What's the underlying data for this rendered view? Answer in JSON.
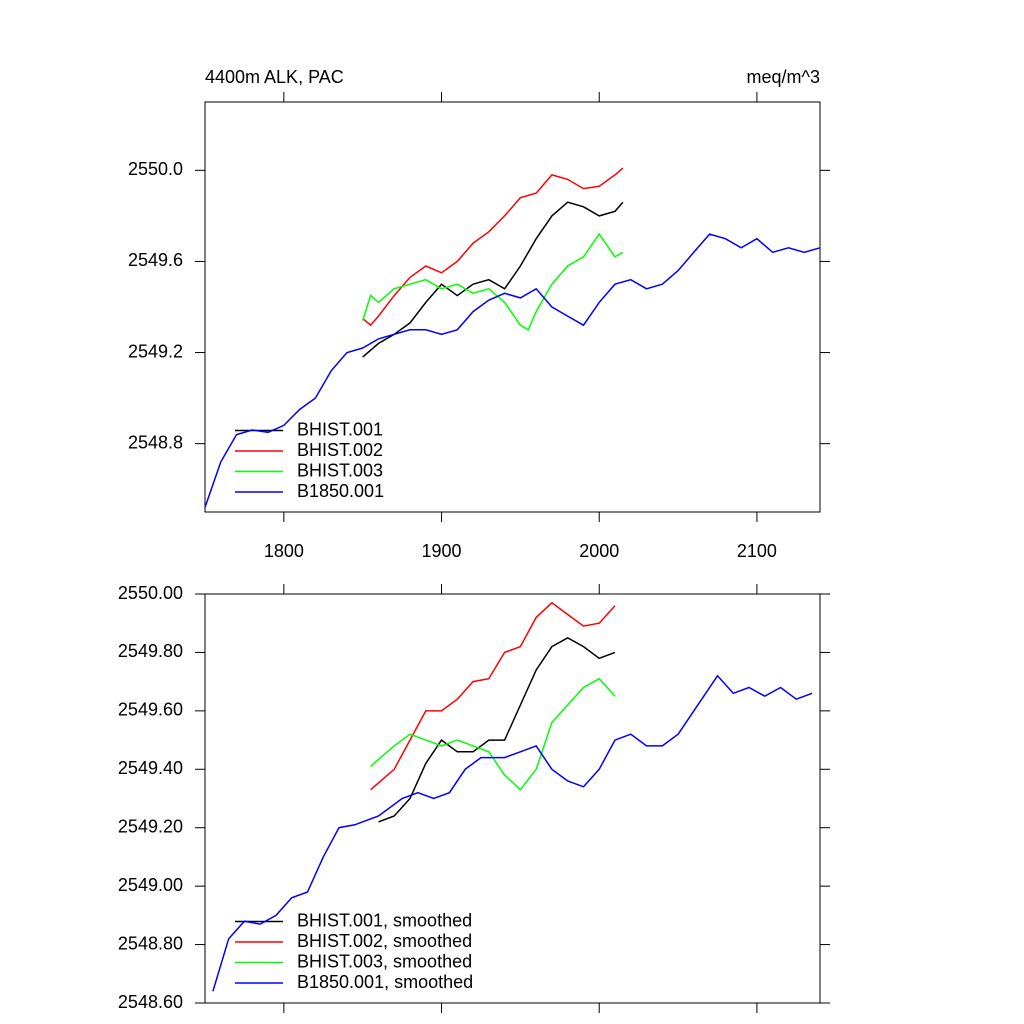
{
  "chart_data": [
    {
      "type": "line",
      "title": "4400m ALK, PAC",
      "units": "meq/m^3",
      "xlim": [
        1750,
        2140
      ],
      "xticks": [
        1800,
        1900,
        2000,
        2100
      ],
      "ylim": [
        2548.5,
        2550.3
      ],
      "yticks": [
        2548.8,
        2549.2,
        2549.6,
        {
          "value": 2550.0,
          "label": "2550.0"
        }
      ],
      "legend": "lower left",
      "series": [
        {
          "name": "BHIST.001",
          "color": "#000000",
          "x": [
            1850,
            1860,
            1870,
            1880,
            1890,
            1900,
            1910,
            1920,
            1930,
            1940,
            1950,
            1960,
            1970,
            1980,
            1990,
            2000,
            2010,
            2015
          ],
          "values": [
            2549.18,
            2549.24,
            2549.28,
            2549.33,
            2549.42,
            2549.5,
            2549.45,
            2549.5,
            2549.52,
            2549.48,
            2549.58,
            2549.7,
            2549.8,
            2549.86,
            2549.84,
            2549.8,
            2549.82,
            2549.86
          ]
        },
        {
          "name": "BHIST.002",
          "color": "#ff0000",
          "x": [
            1850,
            1855,
            1860,
            1870,
            1880,
            1890,
            1900,
            1910,
            1920,
            1930,
            1940,
            1950,
            1960,
            1970,
            1980,
            1990,
            2000,
            2010,
            2015
          ],
          "values": [
            2549.35,
            2549.32,
            2549.36,
            2549.45,
            2549.53,
            2549.58,
            2549.55,
            2549.6,
            2549.68,
            2549.73,
            2549.8,
            2549.88,
            2549.9,
            2549.98,
            2549.96,
            2549.92,
            2549.93,
            2549.98,
            2550.01
          ]
        },
        {
          "name": "BHIST.003",
          "color": "#00ff00",
          "x": [
            1850,
            1855,
            1860,
            1870,
            1880,
            1890,
            1900,
            1910,
            1920,
            1930,
            1940,
            1950,
            1955,
            1960,
            1970,
            1980,
            1990,
            2000,
            2010,
            2015
          ],
          "values": [
            2549.34,
            2549.45,
            2549.42,
            2549.48,
            2549.5,
            2549.52,
            2549.48,
            2549.5,
            2549.46,
            2549.48,
            2549.42,
            2549.32,
            2549.3,
            2549.38,
            2549.5,
            2549.58,
            2549.62,
            2549.72,
            2549.62,
            2549.64
          ]
        },
        {
          "name": "B1850.001",
          "color": "#0000ff",
          "x": [
            1750,
            1760,
            1770,
            1780,
            1790,
            1800,
            1810,
            1820,
            1830,
            1840,
            1850,
            1860,
            1870,
            1880,
            1890,
            1900,
            1910,
            1920,
            1930,
            1940,
            1950,
            1960,
            1970,
            1980,
            1990,
            2000,
            2010,
            2020,
            2030,
            2040,
            2050,
            2060,
            2070,
            2080,
            2090,
            2100,
            2110,
            2120,
            2130,
            2140
          ],
          "values": [
            2548.52,
            2548.72,
            2548.84,
            2548.86,
            2548.85,
            2548.88,
            2548.95,
            2549.0,
            2549.12,
            2549.2,
            2549.22,
            2549.26,
            2549.28,
            2549.3,
            2549.3,
            2549.28,
            2549.3,
            2549.38,
            2549.43,
            2549.46,
            2549.44,
            2549.48,
            2549.4,
            2549.36,
            2549.32,
            2549.42,
            2549.5,
            2549.52,
            2549.48,
            2549.5,
            2549.56,
            2549.64,
            2549.72,
            2549.7,
            2549.66,
            2549.7,
            2549.64,
            2549.66,
            2549.64,
            2549.66
          ]
        }
      ]
    },
    {
      "type": "line",
      "xlim": [
        1750,
        2140
      ],
      "xticks": [
        1800,
        1900,
        2000,
        2100
      ],
      "ylim": [
        2548.6,
        2550.0
      ],
      "yticks": [
        {
          "value": 2548.6,
          "label": "2548.60"
        },
        {
          "value": 2548.8,
          "label": "2548.80"
        },
        {
          "value": 2549.0,
          "label": "2549.00"
        },
        {
          "value": 2549.2,
          "label": "2549.20"
        },
        {
          "value": 2549.4,
          "label": "2549.40"
        },
        {
          "value": 2549.6,
          "label": "2549.60"
        },
        {
          "value": 2549.8,
          "label": "2549.80"
        },
        {
          "value": 2550.0,
          "label": "2550.00"
        }
      ],
      "legend": "lower left",
      "series": [
        {
          "name": "BHIST.001, smoothed",
          "color": "#000000",
          "x": [
            1860,
            1870,
            1880,
            1890,
            1900,
            1910,
            1920,
            1930,
            1940,
            1950,
            1960,
            1970,
            1980,
            1990,
            2000,
            2010
          ],
          "values": [
            2549.22,
            2549.24,
            2549.3,
            2549.42,
            2549.5,
            2549.46,
            2549.46,
            2549.5,
            2549.5,
            2549.62,
            2549.74,
            2549.82,
            2549.85,
            2549.82,
            2549.78,
            2549.8
          ]
        },
        {
          "name": "BHIST.002, smoothed",
          "color": "#ff0000",
          "x": [
            1855,
            1870,
            1880,
            1890,
            1900,
            1910,
            1920,
            1930,
            1940,
            1950,
            1960,
            1970,
            1980,
            1990,
            2000,
            2010
          ],
          "values": [
            2549.33,
            2549.4,
            2549.5,
            2549.6,
            2549.6,
            2549.64,
            2549.7,
            2549.71,
            2549.8,
            2549.82,
            2549.92,
            2549.97,
            2549.93,
            2549.89,
            2549.9,
            2549.96
          ]
        },
        {
          "name": "BHIST.003, smoothed",
          "color": "#00ff00",
          "x": [
            1855,
            1870,
            1880,
            1890,
            1900,
            1910,
            1920,
            1930,
            1940,
            1950,
            1960,
            1970,
            1980,
            1990,
            2000,
            2010
          ],
          "values": [
            2549.41,
            2549.48,
            2549.52,
            2549.5,
            2549.48,
            2549.5,
            2549.48,
            2549.46,
            2549.38,
            2549.33,
            2549.4,
            2549.56,
            2549.62,
            2549.68,
            2549.71,
            2549.65
          ]
        },
        {
          "name": "B1850.001, smoothed",
          "color": "#0000ff",
          "x": [
            1755,
            1765,
            1775,
            1785,
            1795,
            1805,
            1815,
            1825,
            1835,
            1845,
            1860,
            1875,
            1885,
            1895,
            1905,
            1915,
            1925,
            1940,
            1950,
            1960,
            1970,
            1980,
            1990,
            2000,
            2010,
            2020,
            2030,
            2040,
            2050,
            2060,
            2075,
            2085,
            2095,
            2105,
            2115,
            2125,
            2135
          ],
          "values": [
            2548.64,
            2548.82,
            2548.88,
            2548.87,
            2548.9,
            2548.96,
            2548.98,
            2549.1,
            2549.2,
            2549.21,
            2549.24,
            2549.3,
            2549.32,
            2549.3,
            2549.32,
            2549.4,
            2549.44,
            2549.44,
            2549.46,
            2549.48,
            2549.4,
            2549.36,
            2549.34,
            2549.4,
            2549.5,
            2549.52,
            2549.48,
            2549.48,
            2549.52,
            2549.6,
            2549.72,
            2549.66,
            2549.68,
            2549.65,
            2549.68,
            2549.64,
            2549.66
          ]
        }
      ]
    }
  ]
}
